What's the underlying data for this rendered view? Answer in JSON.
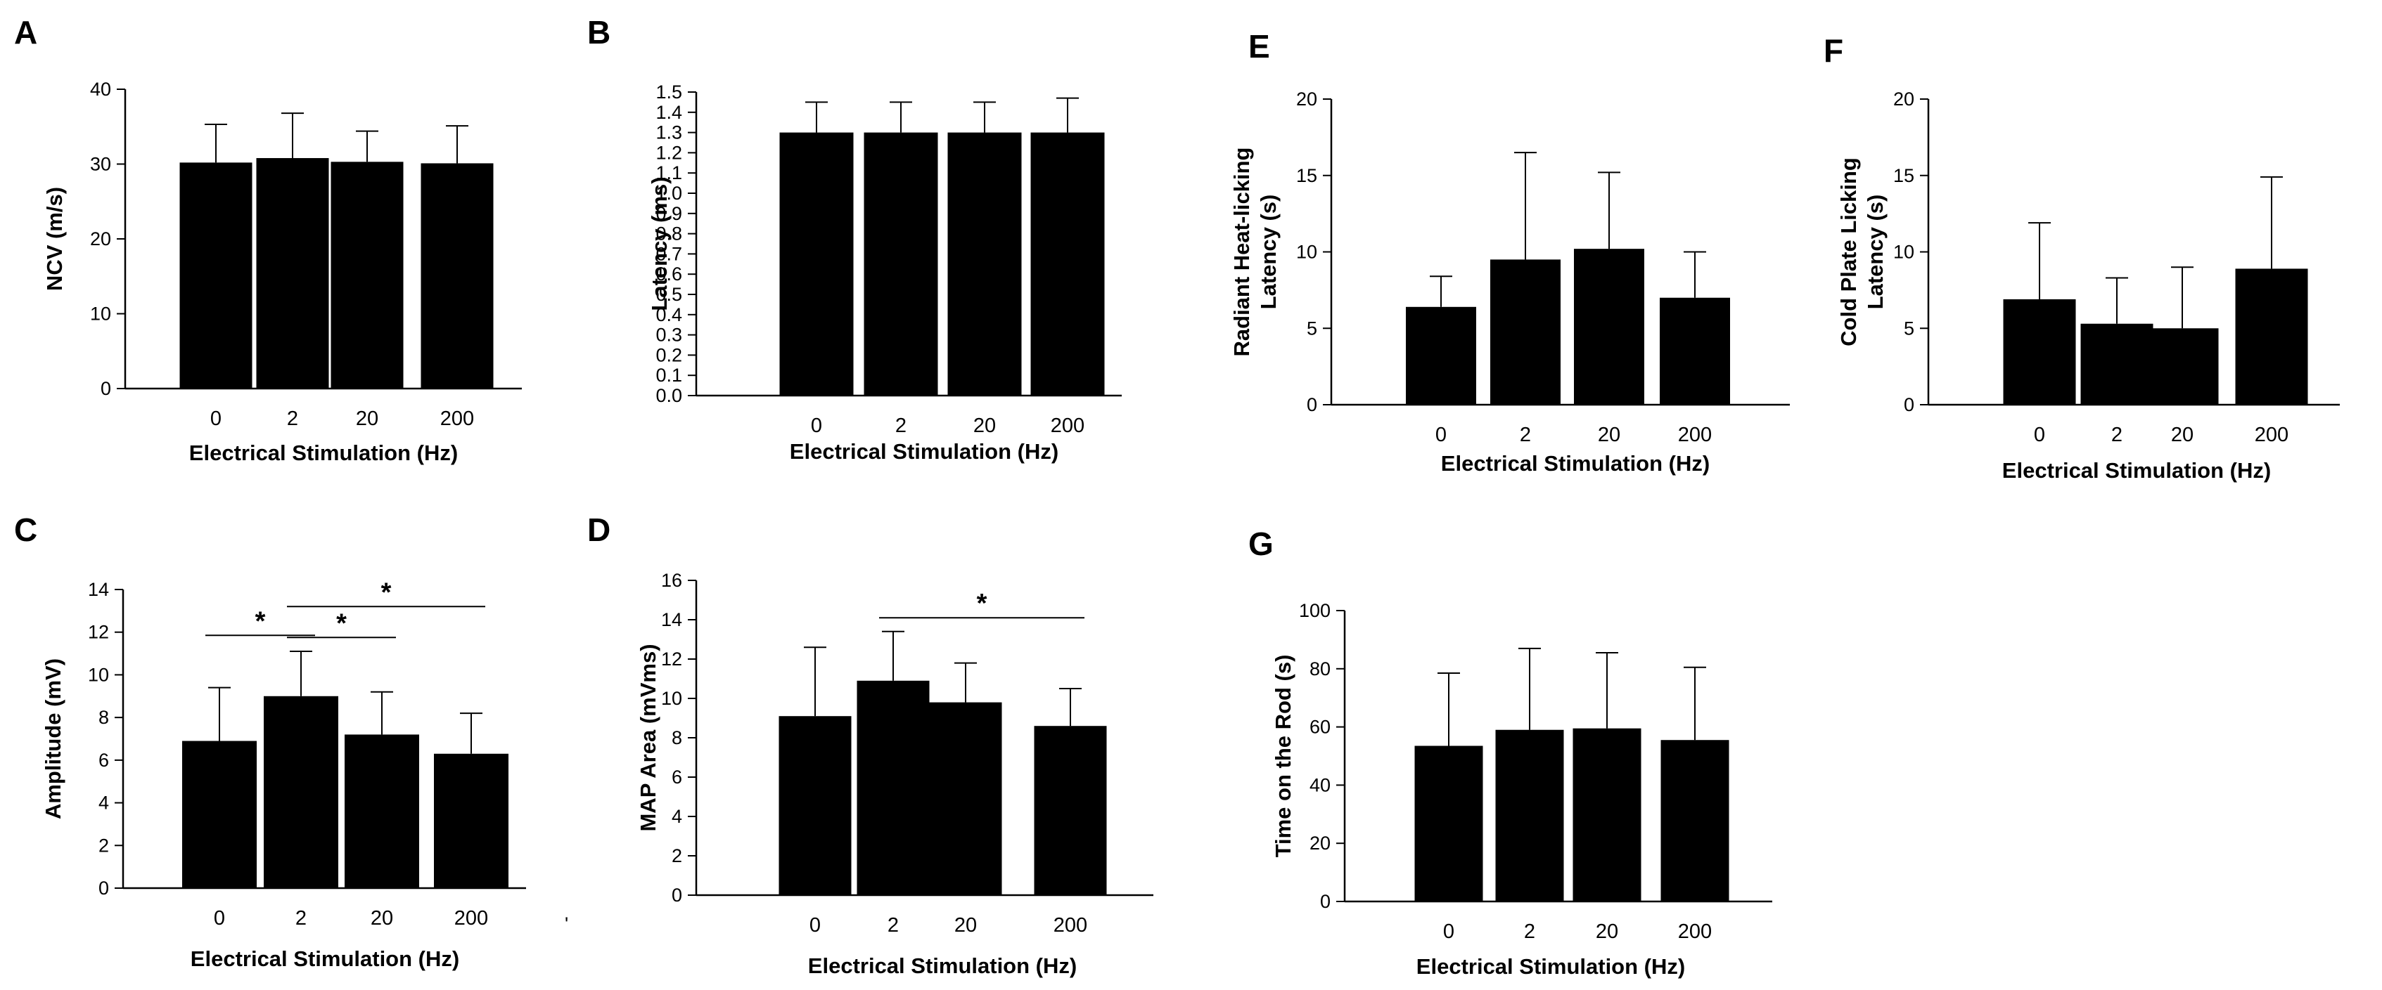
{
  "chart_data": [
    {
      "id": "A",
      "type": "bar",
      "panel_label": "A",
      "categories": [
        "0",
        "2",
        "20",
        "200"
      ],
      "values": [
        30.2,
        30.8,
        30.3,
        30.1
      ],
      "errors": [
        5.1,
        6.0,
        4.1,
        5.0
      ],
      "ylim": [
        0,
        40
      ],
      "yticks": [
        0,
        10,
        20,
        30,
        40
      ],
      "ylabel": [
        "NCV (m/s)"
      ],
      "xlabel": "Electrical Stimulation (Hz)",
      "significance": []
    },
    {
      "id": "B",
      "type": "bar",
      "panel_label": "B",
      "categories": [
        "0",
        "2",
        "20",
        "200"
      ],
      "values": [
        1.3,
        1.3,
        1.3,
        1.3
      ],
      "errors": [
        0.15,
        0.15,
        0.15,
        0.17
      ],
      "ylim": [
        0,
        1.5
      ],
      "yticks": [
        0.0,
        0.1,
        0.2,
        0.3,
        0.4,
        0.5,
        0.6,
        0.7,
        0.8,
        0.9,
        1.0,
        1.1,
        1.2,
        1.3,
        1.4,
        1.5
      ],
      "ytick_decimals": 1,
      "ylabel": [
        "Latency (ms)"
      ],
      "xlabel": "Electrical Stimulation (Hz)",
      "significance": []
    },
    {
      "id": "C",
      "type": "bar",
      "panel_label": "C",
      "categories": [
        "0",
        "2",
        "20",
        "200"
      ],
      "values": [
        6.9,
        9.0,
        7.2,
        6.3
      ],
      "errors": [
        2.5,
        2.1,
        2.0,
        1.9
      ],
      "ylim": [
        0,
        14
      ],
      "yticks": [
        0,
        2,
        4,
        6,
        8,
        10,
        12,
        14
      ],
      "ylabel": [
        "Amplitude (mV)"
      ],
      "xlabel": "Electrical Stimulation (Hz)",
      "significance": [
        {
          "from": 0,
          "to": 1,
          "y": 11.85,
          "label": "*"
        },
        {
          "from": 1,
          "to": 2,
          "y": 11.75,
          "label": "*"
        },
        {
          "from": 1,
          "to": 3,
          "y": 13.2,
          "label": "*"
        }
      ],
      "stray_mark": "'"
    },
    {
      "id": "D",
      "type": "bar",
      "panel_label": "D",
      "categories": [
        "0",
        "2",
        "20",
        "200"
      ],
      "values": [
        9.1,
        10.9,
        9.8,
        8.6
      ],
      "errors": [
        3.5,
        2.5,
        2.0,
        1.9
      ],
      "ylim": [
        0,
        16
      ],
      "yticks": [
        0,
        2,
        4,
        6,
        8,
        10,
        12,
        14,
        16
      ],
      "ylabel": [
        "MAP Area (mVms)"
      ],
      "xlabel": "Electrical Stimulation (Hz)",
      "significance": [
        {
          "from": 1,
          "to": 3,
          "y": 14.1,
          "label": "*"
        }
      ]
    },
    {
      "id": "E",
      "type": "bar",
      "panel_label": "E",
      "categories": [
        "0",
        "2",
        "20",
        "200"
      ],
      "values": [
        6.4,
        9.5,
        10.2,
        7.0
      ],
      "errors": [
        2.0,
        7.0,
        5.0,
        3.0
      ],
      "ylim": [
        0,
        20
      ],
      "yticks": [
        0,
        5,
        10,
        15,
        20
      ],
      "ylabel": [
        "Radiant Heat-licking",
        "Latency (s)"
      ],
      "xlabel": "Electrical Stimulation (Hz)",
      "significance": []
    },
    {
      "id": "F",
      "type": "bar",
      "panel_label": "F",
      "categories": [
        "0",
        "2",
        "20",
        "200"
      ],
      "values": [
        6.9,
        5.3,
        5.0,
        8.9
      ],
      "errors": [
        5.0,
        3.0,
        4.0,
        6.0
      ],
      "ylim": [
        0,
        20
      ],
      "yticks": [
        0,
        5,
        10,
        15,
        20
      ],
      "ylabel": [
        "Cold Plate Licking",
        "Latency (s)"
      ],
      "xlabel": "Electrical Stimulation (Hz)",
      "significance": []
    },
    {
      "id": "G",
      "type": "bar",
      "panel_label": "G",
      "categories": [
        "0",
        "2",
        "20",
        "200"
      ],
      "values": [
        53.5,
        59.0,
        59.5,
        55.5
      ],
      "errors": [
        25.0,
        28.0,
        26.0,
        25.0
      ],
      "ylim": [
        0,
        100
      ],
      "yticks": [
        0,
        20,
        40,
        60,
        80,
        100
      ],
      "ylabel": [
        "Time on the Rod (s)"
      ],
      "xlabel": "Electrical Stimulation (Hz)",
      "significance": []
    }
  ]
}
